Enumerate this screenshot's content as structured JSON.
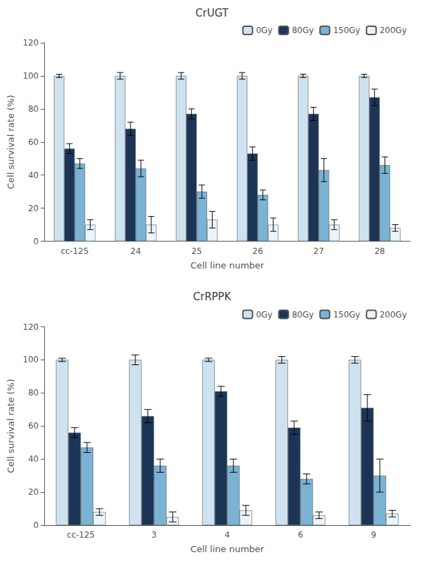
{
  "chart_data": [
    {
      "type": "bar",
      "title": "CrUGT",
      "xlabel": "Cell line number",
      "ylabel": "Cell survival rate (%)",
      "categories": [
        "cc-125",
        "24",
        "25",
        "26",
        "27",
        "28"
      ],
      "series": [
        {
          "name": "0Gy",
          "color": "#cfe2f0",
          "values": [
            100,
            100,
            100,
            100,
            100,
            100
          ],
          "errors": [
            1,
            2,
            2,
            2,
            1,
            1
          ]
        },
        {
          "name": "80Gy",
          "color": "#1c3557",
          "values": [
            56,
            68,
            77,
            53,
            77,
            87
          ],
          "errors": [
            3,
            4,
            3,
            4,
            4,
            5
          ]
        },
        {
          "name": "150Gy",
          "color": "#7ab3d4",
          "values": [
            47,
            44,
            30,
            28,
            43,
            46
          ],
          "errors": [
            3,
            5,
            4,
            3,
            7,
            5
          ]
        },
        {
          "name": "200Gy",
          "color": "#eaf4fb",
          "values": [
            10,
            10,
            13,
            10,
            10,
            8
          ],
          "errors": [
            3,
            5,
            5,
            4,
            3,
            2
          ]
        }
      ],
      "ylim": [
        0,
        120
      ],
      "yticks": [
        0,
        20,
        40,
        60,
        80,
        100,
        120
      ],
      "grid": false,
      "legend": "upper right"
    },
    {
      "type": "bar",
      "title": "CrRPPK",
      "xlabel": "Cell line number",
      "ylabel": "Cell survival rate (%)",
      "categories": [
        "cc-125",
        "3",
        "4",
        "6",
        "9"
      ],
      "series": [
        {
          "name": "0Gy",
          "color": "#cfe2f0",
          "values": [
            100,
            100,
            100,
            100,
            100
          ],
          "errors": [
            1,
            3,
            1,
            2,
            2
          ]
        },
        {
          "name": "80Gy",
          "color": "#1c3557",
          "values": [
            56,
            66,
            81,
            59,
            71
          ],
          "errors": [
            3,
            4,
            3,
            4,
            8
          ]
        },
        {
          "name": "150Gy",
          "color": "#7ab3d4",
          "values": [
            47,
            36,
            36,
            28,
            30
          ],
          "errors": [
            3,
            4,
            4,
            3,
            10
          ]
        },
        {
          "name": "200Gy",
          "color": "#eaf4fb",
          "values": [
            8,
            5,
            9,
            6,
            7
          ],
          "errors": [
            2,
            3,
            3,
            2,
            2
          ]
        }
      ],
      "ylim": [
        0,
        120
      ],
      "yticks": [
        0,
        20,
        40,
        60,
        80,
        100,
        120
      ],
      "grid": false,
      "legend": "upper right"
    }
  ]
}
